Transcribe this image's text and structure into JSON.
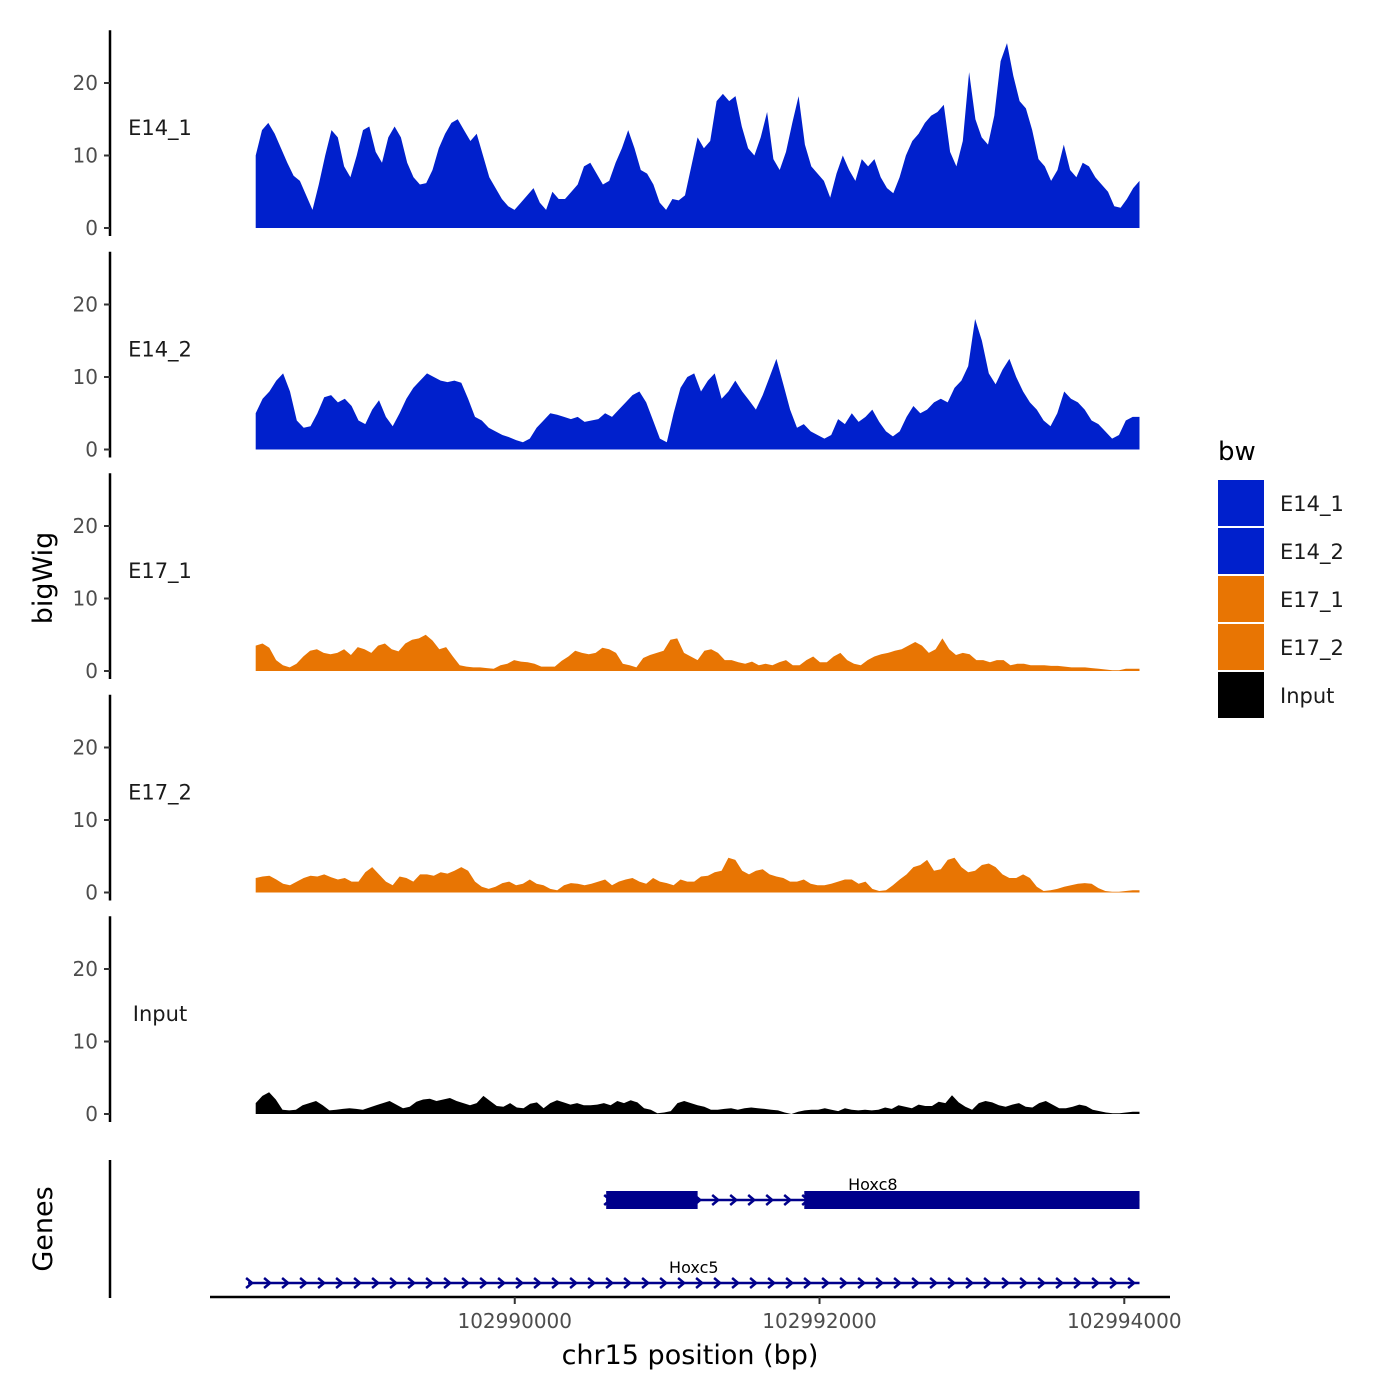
{
  "chart_data": {
    "type": "area",
    "title": "",
    "xlabel": "chr15 position (bp)",
    "ylabel": "bigWig",
    "gene_track_label": "Genes",
    "x_range": [
      102988000,
      102994300
    ],
    "data_x_range": [
      102988300,
      102994100
    ],
    "ylim": [
      0,
      27
    ],
    "y_ticks": [
      0,
      10,
      20
    ],
    "y_tick_labels": [
      "0",
      "10",
      "20"
    ],
    "x_ticks": [
      102990000,
      102992000,
      102994000
    ],
    "x_tick_labels": [
      "102990000",
      "102992000",
      "102994000"
    ],
    "legend": {
      "title": "bw",
      "position": "right",
      "entries": [
        {
          "label": "E14_1",
          "color": "#0020CC"
        },
        {
          "label": "E14_2",
          "color": "#0020CC"
        },
        {
          "label": "E17_1",
          "color": "#E87503"
        },
        {
          "label": "E17_2",
          "color": "#E87503"
        },
        {
          "label": "Input",
          "color": "#000000"
        }
      ]
    },
    "tracks": [
      {
        "name": "E14_1",
        "color": "#0020CC",
        "values": [
          10,
          13.5,
          14.5,
          13,
          11,
          9,
          7.2,
          6.5,
          4.5,
          2.5,
          6,
          10,
          13.5,
          12.5,
          8.5,
          7,
          10,
          13.5,
          14,
          10.5,
          9,
          12.5,
          14,
          12.5,
          9,
          7,
          6,
          6.2,
          8,
          11,
          13,
          14.5,
          15,
          13.5,
          12,
          13,
          10,
          7,
          5.5,
          4,
          3,
          2.5,
          3.5,
          4.5,
          5.5,
          3.5,
          2.5,
          5,
          4,
          4,
          5,
          6,
          8.5,
          9,
          7.5,
          6,
          6.5,
          9,
          11,
          13.5,
          11,
          8,
          7.5,
          6,
          3.5,
          2.5,
          4,
          3.8,
          4.5,
          8.5,
          12.5,
          11,
          12,
          17.5,
          18.5,
          17.5,
          18.2,
          14,
          11,
          10,
          12.5,
          16,
          9.5,
          8,
          10.5,
          14.5,
          18.2,
          11.5,
          8.5,
          7.5,
          6.5,
          4.2,
          7.5,
          10,
          8,
          6.5,
          9.5,
          8.5,
          9.5,
          7,
          5.5,
          4.8,
          7,
          10,
          12,
          13,
          14.5,
          15.5,
          16,
          17,
          10.5,
          8.5,
          12,
          21.5,
          15,
          12.5,
          11.5,
          15.5,
          23,
          25.5,
          21,
          17.5,
          16.5,
          13.5,
          9.5,
          8.5,
          6.5,
          8,
          11.5,
          8,
          7,
          9,
          8.5,
          7,
          6,
          5,
          3,
          2.8,
          4,
          5.5,
          6.5
        ]
      },
      {
        "name": "E14_2",
        "color": "#0020CC",
        "values": [
          5,
          7,
          8,
          9.5,
          10.5,
          8,
          4,
          3,
          3.2,
          5,
          7.2,
          7.5,
          6.5,
          7,
          6,
          4,
          3.5,
          5.5,
          6.8,
          4.5,
          3.2,
          5,
          7,
          8.5,
          9.5,
          10.5,
          10,
          9.5,
          9.3,
          9.5,
          9.2,
          7,
          4.5,
          4,
          3,
          2.5,
          2,
          1.7,
          1.3,
          1,
          1.5,
          3,
          4,
          5,
          4.8,
          4.5,
          4.2,
          4.5,
          3.8,
          4,
          4.2,
          5,
          4.5,
          5.5,
          6.5,
          7.5,
          8,
          6.5,
          4,
          1.5,
          1,
          5,
          8.5,
          10,
          10.5,
          8,
          9.5,
          10.5,
          7,
          8,
          9.5,
          8,
          6.8,
          5.5,
          7.5,
          10,
          12.5,
          9,
          5.5,
          3,
          3.5,
          2.5,
          2,
          1.5,
          2,
          4.2,
          3.5,
          5,
          3.8,
          4.5,
          5.5,
          3.8,
          2.5,
          1.8,
          2.5,
          4.5,
          6,
          5,
          5.5,
          6.5,
          7,
          6.5,
          8.5,
          9.5,
          11.5,
          18,
          15,
          10.5,
          9,
          11,
          12.5,
          10,
          8,
          6.5,
          5.5,
          4,
          3.2,
          5,
          8,
          7,
          6.5,
          5.5,
          4,
          3.5,
          2.5,
          1.5,
          2,
          4,
          4.5,
          4.5
        ]
      },
      {
        "name": "E17_1",
        "color": "#E87503",
        "values": [
          3.5,
          3.8,
          3.2,
          1.5,
          0.8,
          0.5,
          1,
          2,
          2.8,
          3,
          2.5,
          2.3,
          2.5,
          3,
          2.2,
          3.3,
          3,
          2.5,
          3.5,
          3.8,
          3,
          2.7,
          3.8,
          4.3,
          4.5,
          5,
          4.2,
          3,
          3.3,
          2,
          0.8,
          0.6,
          0.5,
          0.5,
          0.4,
          0.3,
          0.8,
          1,
          1.5,
          1.3,
          1.2,
          1,
          0.6,
          0.6,
          0.6,
          1.4,
          2,
          2.8,
          2.5,
          2.3,
          2.5,
          3.2,
          3,
          2.5,
          1,
          0.8,
          0.5,
          1.8,
          2.2,
          2.5,
          2.8,
          4.3,
          4.5,
          2.5,
          2,
          1.5,
          2.8,
          3,
          2.5,
          1.5,
          1.5,
          1.2,
          1,
          1.3,
          0.8,
          1,
          0.8,
          1.2,
          1.5,
          0.8,
          0.8,
          1.5,
          2,
          1.2,
          1.2,
          2,
          2.5,
          1.5,
          1,
          0.8,
          1.5,
          2,
          2.3,
          2.5,
          2.8,
          3,
          3.5,
          4,
          3.5,
          2.5,
          3,
          4.5,
          3,
          2.2,
          2.5,
          2.3,
          1.5,
          1.5,
          1.2,
          1.5,
          1.5,
          0.8,
          1,
          1,
          0.8,
          0.8,
          0.8,
          0.7,
          0.7,
          0.6,
          0.5,
          0.5,
          0.5,
          0.4,
          0.3,
          0.2,
          0.1,
          0.1,
          0.3,
          0.3,
          0.3
        ]
      },
      {
        "name": "E17_2",
        "color": "#E87503",
        "values": [
          2,
          2.2,
          2.3,
          1.8,
          1.2,
          1,
          1.5,
          2,
          2.3,
          2.2,
          2.5,
          2.1,
          1.8,
          2,
          1.5,
          1.5,
          2.8,
          3.5,
          2.5,
          1.5,
          1,
          2.2,
          2,
          1.5,
          2.5,
          2.5,
          2.3,
          2.8,
          2.6,
          3,
          3.5,
          3,
          1.5,
          0.8,
          0.5,
          0.8,
          1.3,
          1.5,
          1,
          1.2,
          1.8,
          1.2,
          1,
          0.5,
          0.3,
          1,
          1.3,
          1.2,
          1,
          1.2,
          1.5,
          1.8,
          1,
          1.5,
          1.8,
          2,
          1.5,
          1.2,
          2,
          1.5,
          1.3,
          1,
          1.8,
          1.5,
          1.5,
          2.2,
          2.3,
          2.8,
          3,
          4.8,
          4.5,
          3,
          2.5,
          3,
          3.2,
          2.5,
          2.2,
          2,
          1.5,
          1.5,
          1.8,
          1.2,
          1,
          1,
          1.2,
          1.5,
          1.8,
          1.8,
          1.2,
          1.5,
          0.5,
          0.2,
          0.3,
          1,
          1.8,
          2.5,
          3.5,
          3.8,
          4.5,
          3,
          3.2,
          4.5,
          4.8,
          3.5,
          2.8,
          3,
          3.8,
          4,
          3.5,
          2.5,
          2,
          2,
          2.5,
          2,
          0.8,
          0.2,
          0.3,
          0.5,
          0.8,
          1,
          1.2,
          1.3,
          1.2,
          0.6,
          0.2,
          0.1,
          0.1,
          0.2,
          0.3,
          0.3
        ]
      },
      {
        "name": "Input",
        "color": "#000000",
        "values": [
          1.5,
          2.5,
          3,
          2,
          0.6,
          0.5,
          0.6,
          1.2,
          1.5,
          1.8,
          1.2,
          0.5,
          0.6,
          0.7,
          0.8,
          0.7,
          0.6,
          0.9,
          1.2,
          1.5,
          1.8,
          1.3,
          0.8,
          1,
          1.7,
          2,
          2.1,
          1.8,
          2,
          2.2,
          1.8,
          1.5,
          1.2,
          1.5,
          2.5,
          1.8,
          1.1,
          1,
          1.5,
          0.9,
          0.8,
          1.4,
          1.6,
          0.8,
          1.5,
          1.9,
          1.6,
          1.3,
          1.5,
          1.2,
          1.2,
          1.3,
          1.5,
          1.2,
          1.8,
          1.5,
          1.9,
          1.6,
          0.8,
          0.6,
          0.1,
          0.2,
          0.4,
          1.5,
          1.8,
          1.5,
          1.2,
          1,
          0.6,
          0.6,
          0.7,
          0.8,
          0.6,
          0.8,
          0.9,
          0.8,
          0.7,
          0.6,
          0.5,
          0.2,
          0,
          0.3,
          0.5,
          0.6,
          0.6,
          0.8,
          0.6,
          0.4,
          0.8,
          0.6,
          0.5,
          0.6,
          0.5,
          0.6,
          0.9,
          0.7,
          1.2,
          1,
          0.8,
          1.3,
          1.1,
          1.1,
          1.7,
          1.5,
          2.6,
          1.6,
          1,
          0.6,
          1.5,
          1.8,
          1.6,
          1.2,
          1,
          1.3,
          1.5,
          1,
          0.9,
          1.5,
          1.8,
          1.3,
          0.8,
          0.8,
          1,
          1.3,
          1.1,
          0.6,
          0.4,
          0.2,
          0.1,
          0.1,
          0.2,
          0.3,
          0.3
        ]
      }
    ],
    "genes": [
      {
        "name": "Hoxc8",
        "strand": "+",
        "start": 102990600,
        "end": 102994100,
        "exons": [
          [
            102990600,
            102991200
          ],
          [
            102991900,
            102994100
          ]
        ]
      },
      {
        "name": "Hoxc5",
        "strand": "+",
        "start": 102988250,
        "end": 102994100,
        "exons": []
      }
    ]
  }
}
